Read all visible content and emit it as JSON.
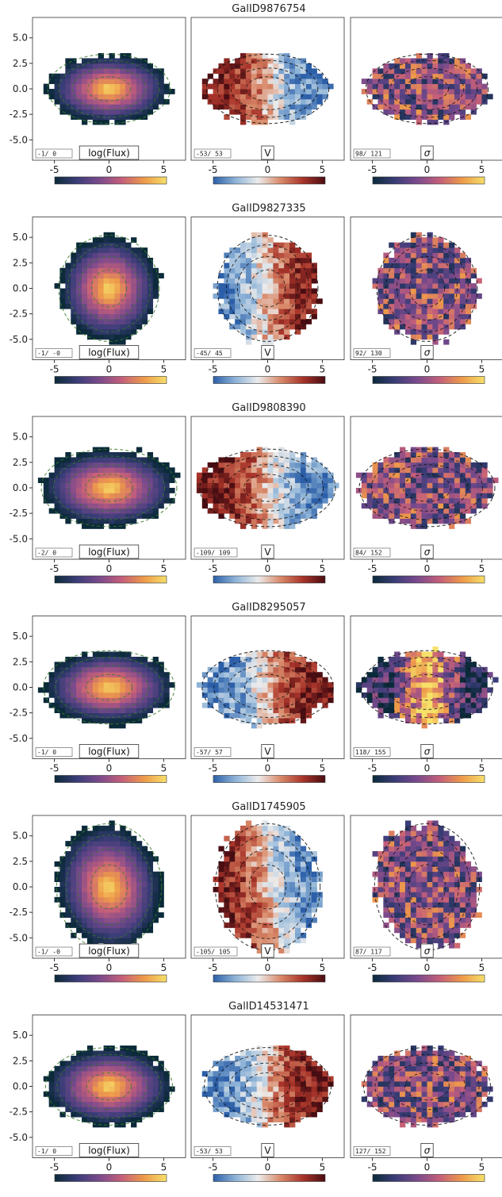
{
  "chart_data": {
    "type": "heatmap",
    "panel_labels": [
      "log(Flux)",
      "V",
      "σ"
    ],
    "x_ticks": [
      -5,
      0,
      5
    ],
    "y_ticks": [
      "5.0",
      "2.5",
      "0.0",
      "-2.5",
      "-5.0"
    ],
    "xlim": [
      -7,
      7
    ],
    "ylim": [
      -7,
      7
    ],
    "colormaps": {
      "log(Flux)": [
        "#0b2a3a",
        "#3b3d78",
        "#7a4a8c",
        "#c45f7a",
        "#ee9a4a",
        "#f6e06a"
      ],
      "V": [
        "#2c5fa8",
        "#8fb4d8",
        "#ececec",
        "#d98a6a",
        "#a8342a",
        "#4a0d12"
      ],
      "σ": [
        "#0b2a3a",
        "#3b3d78",
        "#7a4a8c",
        "#c45f7a",
        "#ee9a4a",
        "#f6e06a"
      ]
    },
    "galaxies": [
      {
        "id": "GalID9876754",
        "ranges": [
          "-1/  0",
          "-53/  53",
          "98/ 121"
        ]
      },
      {
        "id": "GalID9827335",
        "ranges": [
          "-1/ -0",
          "-45/  45",
          "92/ 130"
        ]
      },
      {
        "id": "GalID9808390",
        "ranges": [
          "-2/  0",
          "-109/ 109",
          "84/ 152"
        ]
      },
      {
        "id": "GalID8295057",
        "ranges": [
          "-1/  0",
          "-57/  57",
          "118/ 155"
        ]
      },
      {
        "id": "GalID1745905",
        "ranges": [
          "-1/ -0",
          "-105/ 105",
          "87/ 117"
        ]
      },
      {
        "id": "GalID14531471",
        "ranges": [
          "-1/  0",
          "-53/  53",
          "127/ 152"
        ]
      }
    ]
  }
}
